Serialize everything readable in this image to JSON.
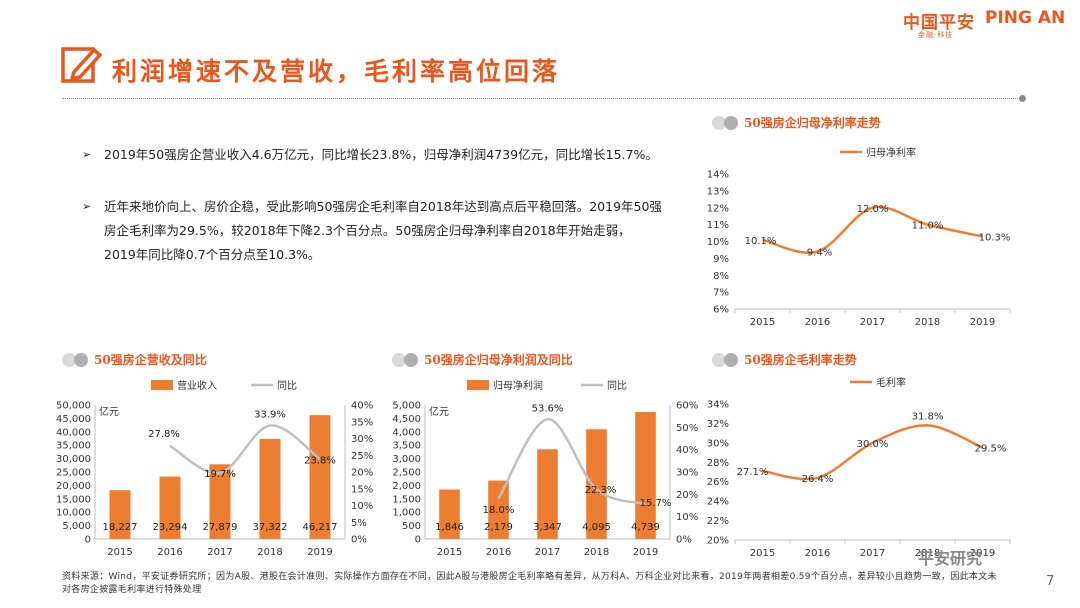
{
  "header": {
    "logo_cn": "中国平安",
    "logo_en": "PING AN",
    "logo_sub": "金融·科技",
    "title": "利润增速不及营收，毛利率高位回落"
  },
  "bullets": [
    "2019年50强房企营业收入4.6万亿元，同比增长23.8%，归母净利润4739亿元，同比增长15.7%。",
    "近年来地价向上、房价企稳，受此影响50强房企毛利率自2018年达到高点后平稳回落。2019年50强房企毛利率为29.5%，较2018年下降2.3个百分点。50强房企归母净利率自2018年开始走弱，2019年同比降0.7个百分点至10.3%。"
  ],
  "chart_data": [
    {
      "id": "net-margin",
      "type": "line",
      "title": "50强房企归母净利率走势",
      "legend": [
        "归母净利率"
      ],
      "categories": [
        "2015",
        "2016",
        "2017",
        "2018",
        "2019"
      ],
      "values": [
        10.1,
        9.4,
        12.0,
        11.0,
        10.3
      ],
      "value_labels": [
        "10.1%",
        "9.4%",
        "12.0%",
        "11.0%",
        "10.3%"
      ],
      "ylim": [
        6,
        14
      ],
      "yticks": [
        "6%",
        "7%",
        "8%",
        "9%",
        "10%",
        "11%",
        "12%",
        "13%",
        "14%"
      ]
    },
    {
      "id": "revenue",
      "type": "bar+line",
      "title": "50强房企营收及同比",
      "legend": [
        "营业收入",
        "同比"
      ],
      "unit": "亿元",
      "categories": [
        "2015",
        "2016",
        "2017",
        "2018",
        "2019"
      ],
      "bar_values": [
        18227,
        23294,
        27879,
        37322,
        46217
      ],
      "bar_labels": [
        "18,227",
        "23,294",
        "27,879",
        "37,322",
        "46,217"
      ],
      "line_values": [
        null,
        27.8,
        19.7,
        33.9,
        23.8
      ],
      "line_labels": [
        "",
        "27.8%",
        "19.7%",
        "33.9%",
        "23.8%"
      ],
      "ylim_left": [
        0,
        50000
      ],
      "yticks_left": [
        "0",
        "5,000",
        "10,000",
        "15,000",
        "20,000",
        "25,000",
        "30,000",
        "35,000",
        "40,000",
        "45,000",
        "50,000"
      ],
      "ylim_right": [
        0,
        40
      ],
      "yticks_right": [
        "0%",
        "5%",
        "10%",
        "15%",
        "20%",
        "25%",
        "30%",
        "35%",
        "40%"
      ]
    },
    {
      "id": "net-profit",
      "type": "bar+line",
      "title": "50强房企归母净利润及同比",
      "legend": [
        "归母净利润",
        "同比"
      ],
      "unit": "亿元",
      "categories": [
        "2015",
        "2016",
        "2017",
        "2018",
        "2019"
      ],
      "bar_values": [
        1846,
        2179,
        3347,
        4095,
        4739
      ],
      "bar_labels": [
        "1,846",
        "2,179",
        "3,347",
        "4,095",
        "4,739"
      ],
      "line_values": [
        null,
        18.0,
        53.6,
        22.3,
        15.7
      ],
      "line_labels": [
        "",
        "18.0%",
        "53.6%",
        "22.3%",
        "15.7%"
      ],
      "ylim_left": [
        0,
        5000
      ],
      "yticks_left": [
        "0",
        "500",
        "1,000",
        "1,500",
        "2,000",
        "2,500",
        "3,000",
        "3,500",
        "4,000",
        "4,500",
        "5,000"
      ],
      "ylim_right": [
        0,
        60
      ],
      "yticks_right": [
        "0%",
        "10%",
        "20%",
        "30%",
        "40%",
        "50%",
        "60%"
      ]
    },
    {
      "id": "gross-margin",
      "type": "line",
      "title": "50强房企毛利率走势",
      "legend": [
        "毛利率"
      ],
      "categories": [
        "2015",
        "2016",
        "2017",
        "2018",
        "2019"
      ],
      "values": [
        27.1,
        26.4,
        30.0,
        31.8,
        29.5
      ],
      "value_labels": [
        "27.1%",
        "26.4%",
        "30.0%",
        "31.8%",
        "29.5%"
      ],
      "ylim": [
        20,
        34
      ],
      "yticks": [
        "20%",
        "22%",
        "24%",
        "26%",
        "28%",
        "30%",
        "32%",
        "34%"
      ]
    }
  ],
  "colors": {
    "accent": "#e8571e",
    "bar": "#ed7d31",
    "line_gray": "#bfbfbf",
    "dot_gray": "#c9c9c9"
  },
  "footnote": "资料来源：Wind，平安证券研究所；因为A股、港股在会计准则、实际操作方面存在不同，因此A股与港股房企毛利率略有差异，从万科A、万科企业对比来看，2019年两者相差0.59个百分点，差异较小且趋势一致，因此本文未对各房企披露毛利率进行特殊处理",
  "page_number": "7",
  "watermark": "平安研究"
}
